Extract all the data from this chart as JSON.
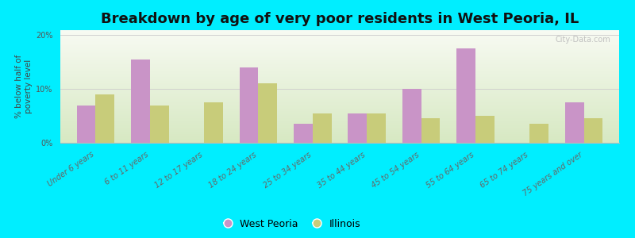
{
  "title": "Breakdown by age of very poor residents in West Peoria, IL",
  "categories": [
    "Under 6 years",
    "6 to 11 years",
    "12 to 17 years",
    "18 to 24 years",
    "25 to 34 years",
    "35 to 44 years",
    "45 to 54 years",
    "55 to 64 years",
    "65 to 74 years",
    "75 years and over"
  ],
  "west_peoria": [
    7.0,
    15.5,
    0.0,
    14.0,
    3.5,
    5.5,
    10.0,
    17.5,
    0.0,
    7.5
  ],
  "illinois": [
    9.0,
    7.0,
    7.5,
    11.0,
    5.5,
    5.5,
    4.5,
    5.0,
    3.5,
    4.5
  ],
  "bar_color_wp": "#c994c7",
  "bar_color_il": "#c8cc7a",
  "background_outer": "#00eeff",
  "ylabel": "% below half of\npoverty level",
  "ylim": [
    0,
    21
  ],
  "yticks": [
    0,
    10,
    20
  ],
  "ytick_labels": [
    "0%",
    "10%",
    "20%"
  ],
  "legend_wp": "West Peoria",
  "legend_il": "Illinois",
  "title_fontsize": 13,
  "tick_fontsize": 7,
  "ylabel_fontsize": 7.5,
  "bar_width": 0.35,
  "watermark": "City-Data.com"
}
